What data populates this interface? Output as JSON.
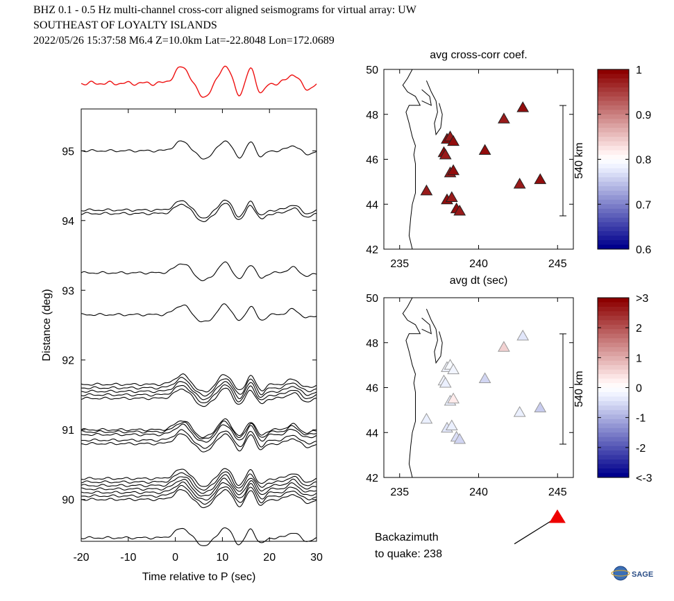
{
  "header": {
    "line1": "BHZ  0.1 - 0.5 Hz  multi-channel cross-corr aligned seismograms for virtual array: UW",
    "line2": "SOUTHEAST OF LOYALTY ISLANDS",
    "line3": "2022/05/26  15:37:58  M6.4  Z=10.0km Lat=-22.8048 Lon=172.0689"
  },
  "chart_data": [
    {
      "type": "line",
      "xlabel": "Time relative to P (sec)",
      "ylabel": "Distance (deg)",
      "xlim": [
        -20,
        30
      ],
      "ylim": [
        89.4,
        95.6
      ],
      "x_ticks": [
        "-20",
        "-10",
        "0",
        "10",
        "20",
        "30"
      ],
      "y_ticks": [
        "90",
        "91",
        "92",
        "93",
        "94",
        "95"
      ],
      "trace_distances": [
        95.0,
        94.15,
        94.1,
        93.25,
        92.65,
        91.65,
        91.6,
        91.55,
        91.5,
        91.45,
        91.0,
        90.97,
        90.93,
        90.85,
        90.8,
        90.3,
        90.25,
        90.2,
        90.15,
        90.1,
        90.05,
        90.0,
        89.45
      ],
      "stack_color": "#ee1111"
    },
    {
      "type": "scatter",
      "title": "avg cross-corr coef.",
      "xlabel": "avg dt (sec)",
      "xlim": [
        234,
        246
      ],
      "ylim": [
        42,
        50
      ],
      "x_ticks": [
        "235",
        "240",
        "245"
      ],
      "y_ticks": [
        "42",
        "44",
        "46",
        "48",
        "50"
      ],
      "scale_label": "540 km",
      "colorbar": {
        "ticks": [
          "1",
          "0.9",
          "0.8",
          "0.7",
          "0.6"
        ],
        "range": [
          0.6,
          1.0
        ]
      },
      "stations": [
        {
          "lon": 236.7,
          "lat": 44.6,
          "value": 0.98
        },
        {
          "lon": 237.8,
          "lat": 46.3,
          "value": 0.99
        },
        {
          "lon": 237.9,
          "lat": 46.2,
          "value": 0.98
        },
        {
          "lon": 238.0,
          "lat": 46.9,
          "value": 0.99
        },
        {
          "lon": 238.2,
          "lat": 47.0,
          "value": 0.98
        },
        {
          "lon": 238.4,
          "lat": 46.8,
          "value": 0.99
        },
        {
          "lon": 238.2,
          "lat": 45.4,
          "value": 0.98
        },
        {
          "lon": 238.4,
          "lat": 45.5,
          "value": 0.99
        },
        {
          "lon": 238.0,
          "lat": 44.2,
          "value": 0.99
        },
        {
          "lon": 238.3,
          "lat": 44.3,
          "value": 0.98
        },
        {
          "lon": 238.6,
          "lat": 43.8,
          "value": 0.99
        },
        {
          "lon": 238.8,
          "lat": 43.7,
          "value": 0.98
        },
        {
          "lon": 240.4,
          "lat": 46.4,
          "value": 0.99
        },
        {
          "lon": 241.6,
          "lat": 47.8,
          "value": 0.98
        },
        {
          "lon": 242.8,
          "lat": 48.3,
          "value": 0.99
        },
        {
          "lon": 242.6,
          "lat": 44.9,
          "value": 0.98
        },
        {
          "lon": 243.9,
          "lat": 45.1,
          "value": 0.99
        }
      ]
    },
    {
      "type": "scatter",
      "xlim": [
        234,
        246
      ],
      "ylim": [
        42,
        50
      ],
      "x_ticks": [
        "235",
        "240",
        "245"
      ],
      "y_ticks": [
        "42",
        "44",
        "46",
        "48",
        "50"
      ],
      "scale_label": "540 km",
      "colorbar": {
        "ticks": [
          ">3",
          "2",
          "1",
          "0",
          "-1",
          "-2",
          "<-3"
        ],
        "range": [
          -3,
          3
        ]
      },
      "stations": [
        {
          "lon": 236.7,
          "lat": 44.6,
          "value": -0.3
        },
        {
          "lon": 237.8,
          "lat": 46.3,
          "value": -0.2
        },
        {
          "lon": 237.9,
          "lat": 46.2,
          "value": -0.3
        },
        {
          "lon": 238.0,
          "lat": 46.9,
          "value": -0.2
        },
        {
          "lon": 238.2,
          "lat": 47.0,
          "value": -0.1
        },
        {
          "lon": 238.4,
          "lat": 46.8,
          "value": -0.2
        },
        {
          "lon": 238.2,
          "lat": 45.4,
          "value": -0.3
        },
        {
          "lon": 238.4,
          "lat": 45.5,
          "value": 0.3
        },
        {
          "lon": 238.0,
          "lat": 44.2,
          "value": -0.4
        },
        {
          "lon": 238.3,
          "lat": 44.3,
          "value": -0.3
        },
        {
          "lon": 238.6,
          "lat": 43.8,
          "value": -0.5
        },
        {
          "lon": 238.8,
          "lat": 43.7,
          "value": -0.6
        },
        {
          "lon": 240.4,
          "lat": 46.4,
          "value": -0.6
        },
        {
          "lon": 241.6,
          "lat": 47.8,
          "value": 0.6
        },
        {
          "lon": 242.8,
          "lat": 48.3,
          "value": -0.4
        },
        {
          "lon": 242.6,
          "lat": 44.9,
          "value": -0.3
        },
        {
          "lon": 243.9,
          "lat": 45.1,
          "value": -0.7
        }
      ]
    }
  ],
  "backazimuth": {
    "line1": "Backazimuth",
    "line2": "to quake:  238",
    "value": 238
  },
  "logo": {
    "text": "SAGE"
  }
}
